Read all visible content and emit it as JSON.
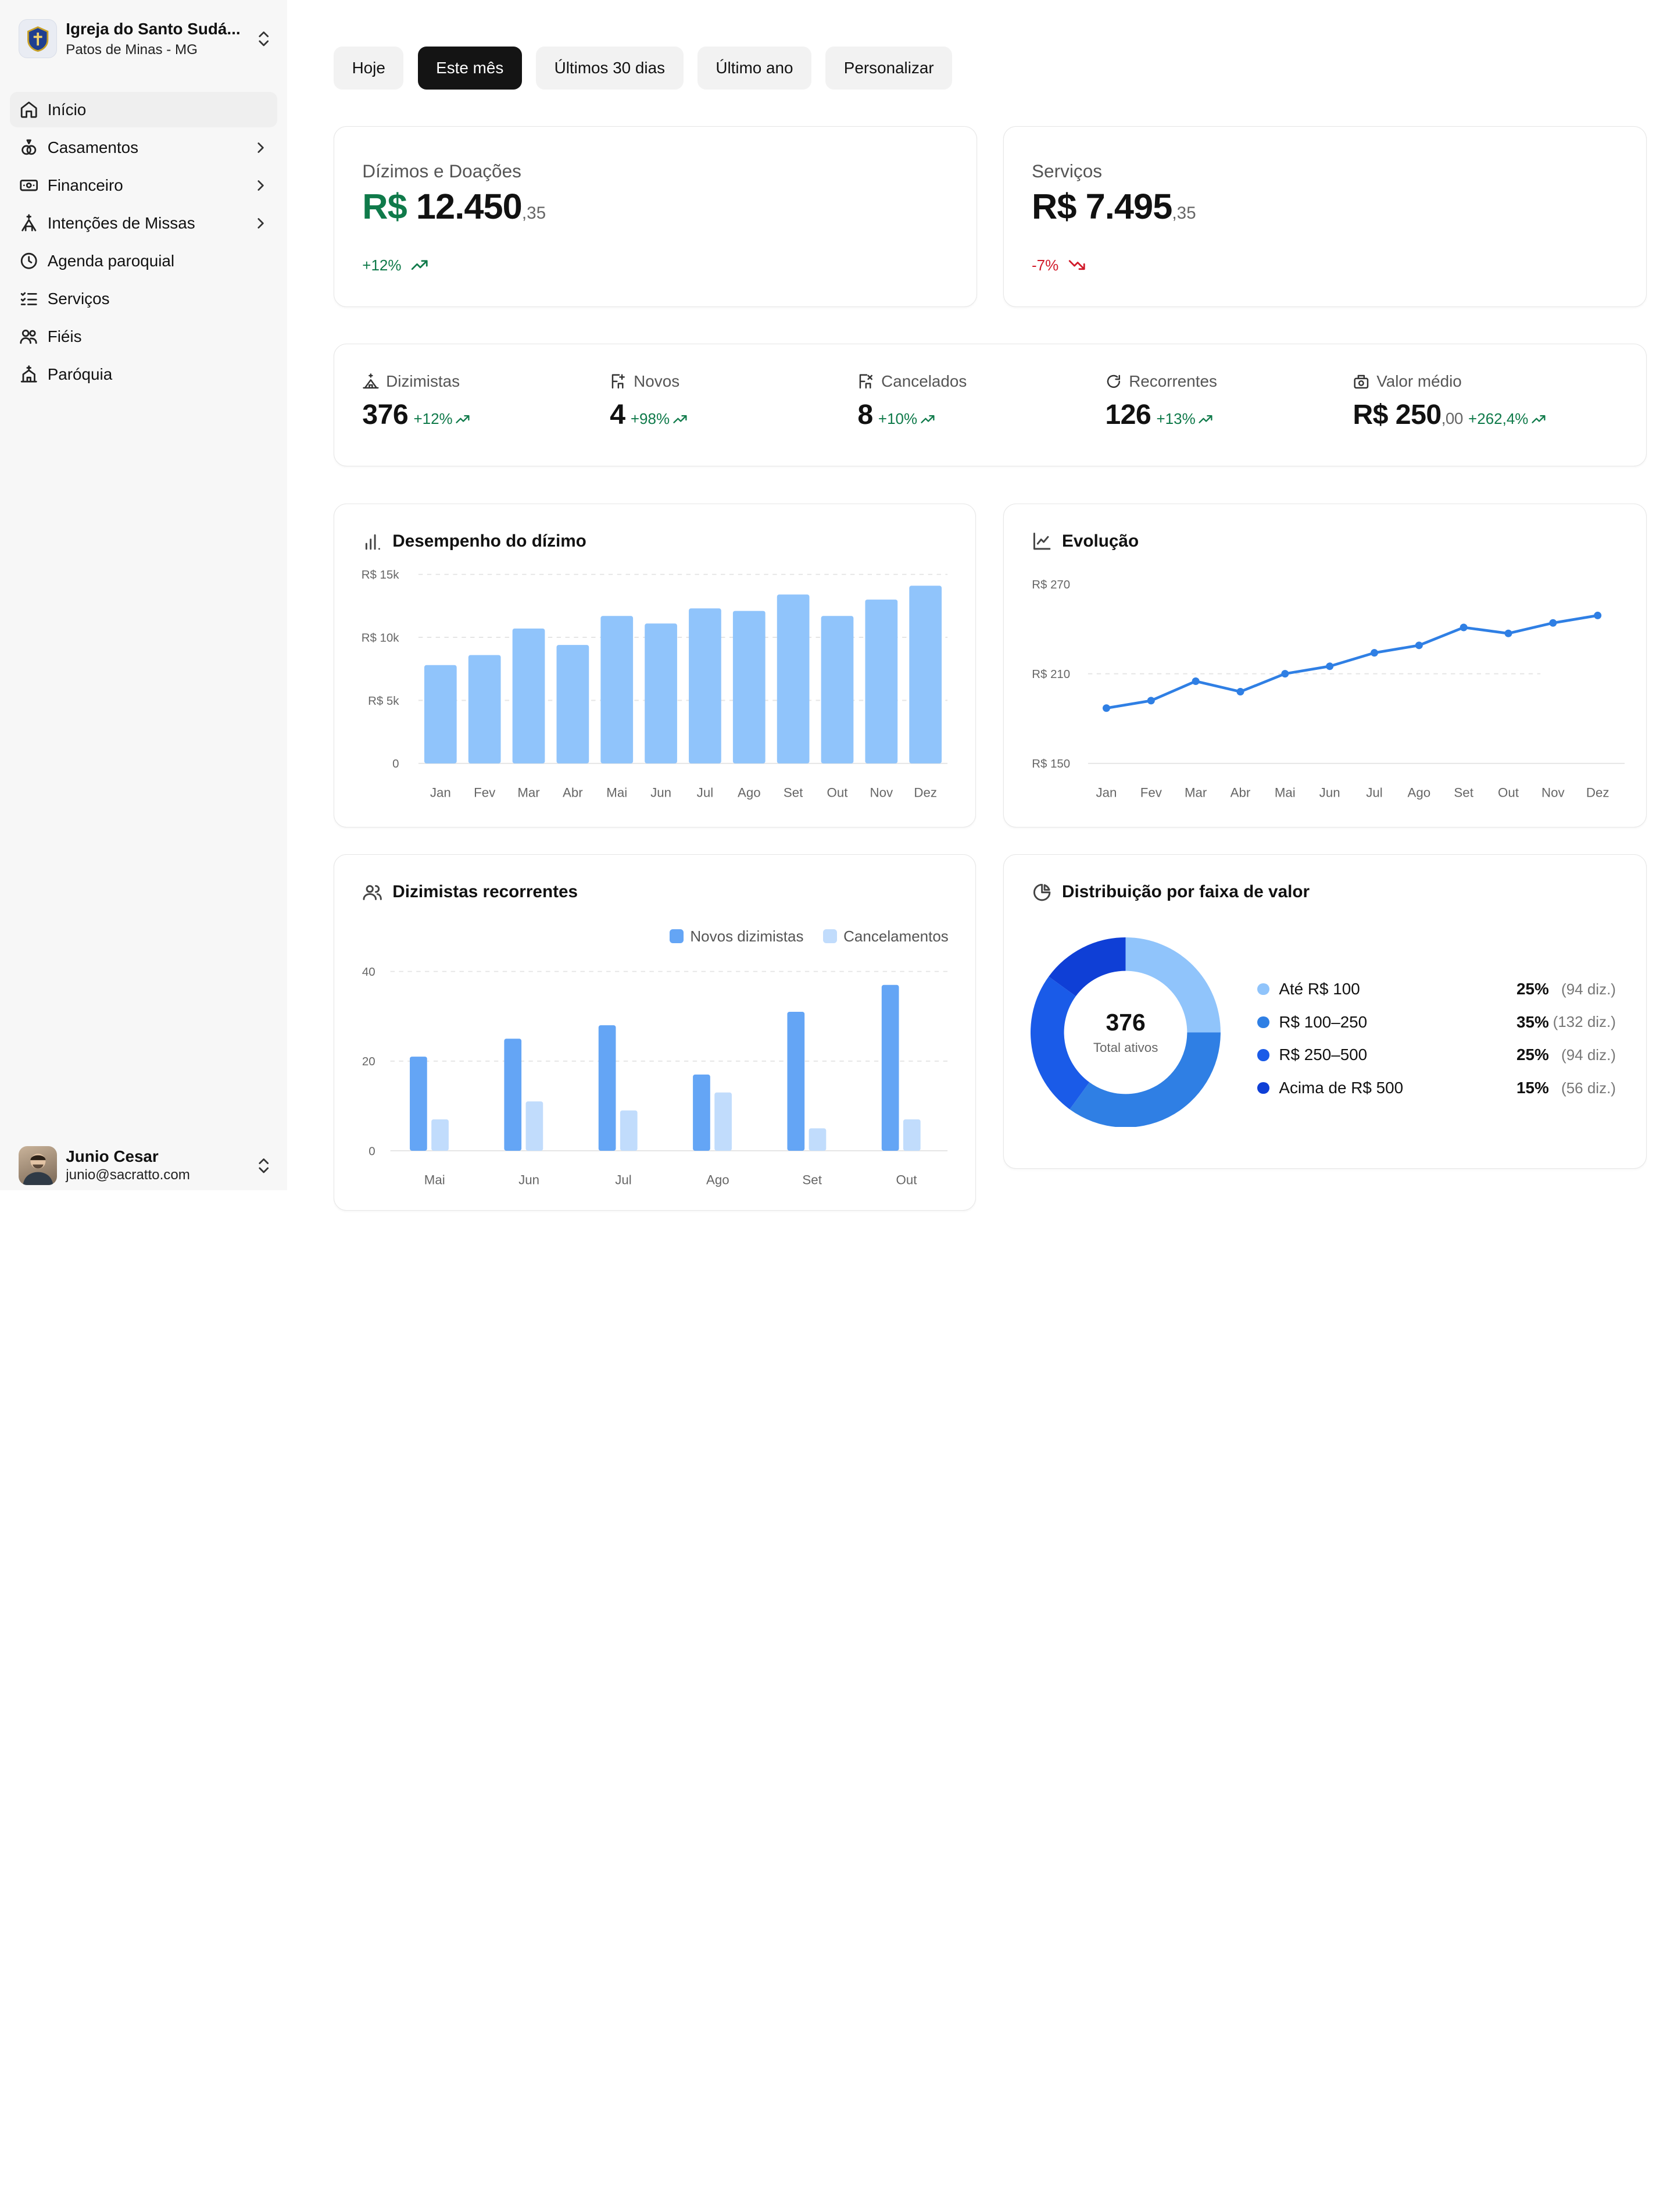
{
  "organization": {
    "name": "Igreja do Santo Sudá...",
    "city": "Patos de Minas - MG"
  },
  "nav": {
    "items": [
      {
        "label": "Início",
        "icon": "home-icon",
        "active": true,
        "has_children": false
      },
      {
        "label": "Casamentos",
        "icon": "rings-icon",
        "active": false,
        "has_children": true
      },
      {
        "label": "Financeiro",
        "icon": "banknote-icon",
        "active": false,
        "has_children": true
      },
      {
        "label": "Intenções de Missas",
        "icon": "church-icon",
        "active": false,
        "has_children": true
      },
      {
        "label": "Agenda paroquial",
        "icon": "clock-icon",
        "active": false,
        "has_children": false
      },
      {
        "label": "Serviços",
        "icon": "list-checks-icon",
        "active": false,
        "has_children": false
      },
      {
        "label": "Fiéis",
        "icon": "users-icon",
        "active": false,
        "has_children": false
      },
      {
        "label": "Paróquia",
        "icon": "building-icon",
        "active": false,
        "has_children": false
      }
    ]
  },
  "user": {
    "name": "Junio Cesar",
    "email": "junio@sacratto.com"
  },
  "filters": [
    {
      "label": "Hoje",
      "active": false
    },
    {
      "label": "Este mês",
      "active": true
    },
    {
      "label": "Últimos 30 dias",
      "active": false
    },
    {
      "label": "Último ano",
      "active": false
    },
    {
      "label": "Personalizar",
      "active": false
    }
  ],
  "summary": {
    "dizimos": {
      "label": "Dízimos e Doações",
      "currency": "R$",
      "integer": "12.450",
      "cents": ",35",
      "trend": "+12%",
      "direction": "up"
    },
    "servicos": {
      "label": "Serviços",
      "currency": "R$",
      "integer": "7.495",
      "cents": ",35",
      "trend": "-7%",
      "direction": "down"
    }
  },
  "stats": [
    {
      "label": "Dizimistas",
      "icon": "church-small-icon",
      "value": "376",
      "cents": "",
      "delta": "+12%"
    },
    {
      "label": "Novos",
      "icon": "user-plus-icon",
      "value": "4",
      "cents": "",
      "delta": "+98%"
    },
    {
      "label": "Cancelados",
      "icon": "user-x-icon",
      "value": "8",
      "cents": "",
      "delta": "+10%"
    },
    {
      "label": "Recorrentes",
      "icon": "refresh-icon",
      "value": "126",
      "cents": "",
      "delta": "+13%"
    },
    {
      "label": "Valor médio",
      "icon": "cash-register-icon",
      "value": "R$ 250",
      "cents": ",00",
      "delta": "+262,4%"
    }
  ],
  "colors": {
    "positive": "#0f7a4a",
    "negative": "#d11a2a",
    "bar_light": "#90c4fb",
    "line": "#2f7fe4",
    "bar_new": "#64a5f5",
    "bar_cancel": "#c1dcfc",
    "dist": [
      "#90c4fb",
      "#2f7fe4",
      "#1a5be8",
      "#0f3fd6"
    ]
  },
  "charts": {
    "desempenho": {
      "title": "Desempenho do dízimo",
      "icon": "bar-chart-icon"
    },
    "evolucao": {
      "title": "Evolução",
      "icon": "line-chart-icon"
    },
    "recorrentes": {
      "title": "Dizimistas recorrentes",
      "icon": "users-icon"
    },
    "distribuicao": {
      "title": "Distribuição por faixa de valor",
      "icon": "pie-chart-icon",
      "center_value": "376",
      "center_label": "Total ativos"
    }
  },
  "chart_data": [
    {
      "type": "bar",
      "title": "Desempenho do dízimo",
      "categories": [
        "Jan",
        "Fev",
        "Mar",
        "Abr",
        "Mai",
        "Jun",
        "Jul",
        "Ago",
        "Set",
        "Out",
        "Nov",
        "Dez"
      ],
      "values": [
        7800,
        8600,
        10700,
        9400,
        11700,
        11100,
        12300,
        12100,
        13400,
        11700,
        13000,
        14100
      ],
      "ylim": [
        0,
        15000
      ],
      "yticks": [
        0,
        5000,
        10000,
        15000
      ],
      "ytick_labels": [
        "0",
        "R$ 5k",
        "R$ 10k",
        "R$ 15k"
      ],
      "grid": true
    },
    {
      "type": "line",
      "title": "Evolução",
      "categories": [
        "Jan",
        "Fev",
        "Mar",
        "Abr",
        "Mai",
        "Jun",
        "Jul",
        "Ago",
        "Set",
        "Out",
        "Nov",
        "Dez"
      ],
      "values": [
        187,
        192,
        205,
        198,
        210,
        215,
        224,
        229,
        241,
        237,
        244,
        249
      ],
      "ylim": [
        150,
        270
      ],
      "yticks": [
        150,
        210,
        270
      ],
      "ytick_labels": [
        "R$ 150",
        "R$ 210",
        "R$ 270"
      ],
      "grid": true
    },
    {
      "type": "bar",
      "title": "Dizimistas recorrentes",
      "categories": [
        "Mai",
        "Jun",
        "Jul",
        "Ago",
        "Set",
        "Out"
      ],
      "series": [
        {
          "name": "Novos dizimistas",
          "values": [
            21,
            25,
            28,
            17,
            31,
            37
          ]
        },
        {
          "name": "Cancelamentos",
          "values": [
            7,
            11,
            9,
            13,
            5,
            7
          ]
        }
      ],
      "ylim": [
        0,
        40
      ],
      "yticks": [
        0,
        20,
        40
      ],
      "ytick_labels": [
        "0",
        "20",
        "40"
      ],
      "legend": "top-right",
      "grid": true
    },
    {
      "type": "pie",
      "title": "Distribuição por faixa de valor",
      "categories": [
        "Até R$ 100",
        "R$ 100–250",
        "R$ 250–500",
        "Acima de R$ 500"
      ],
      "values": [
        25,
        35,
        25,
        15
      ],
      "percent_labels": [
        "25%",
        "35%",
        "25%",
        "15%"
      ],
      "count_labels": [
        "(94 diz.)",
        "(132 diz.)",
        "(94 diz.)",
        "(56 diz.)"
      ]
    }
  ]
}
